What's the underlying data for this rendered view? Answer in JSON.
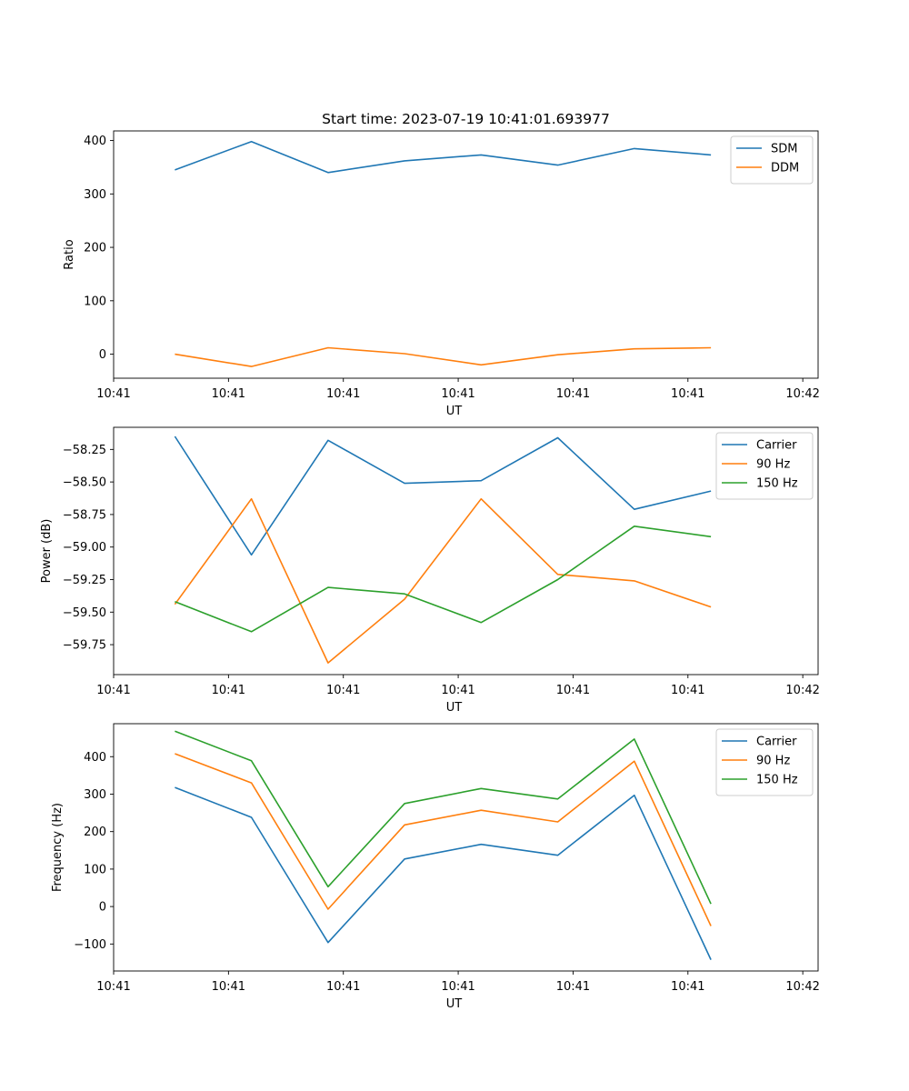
{
  "figure_title": "Start time: 2023-07-19 10:41:01.693977",
  "chart_data": [
    {
      "type": "line",
      "title": "Start time: 2023-07-19 10:41:01.693977",
      "xlabel": "UT",
      "ylabel": "Ratio",
      "x": [
        1,
        2,
        3,
        4,
        5,
        6,
        7,
        8
      ],
      "xlim": [
        0.2,
        9.4
      ],
      "xticks": [
        0.2,
        1.7,
        3.2,
        4.7,
        6.2,
        7.7,
        9.2
      ],
      "xtick_labels": [
        "10:41",
        "10:41",
        "10:41",
        "10:41",
        "10:41",
        "10:41",
        "10:42"
      ],
      "ylim": [
        -45,
        418
      ],
      "yticks": [
        0,
        100,
        200,
        300,
        400
      ],
      "ytick_labels": [
        "0",
        "100",
        "200",
        "300",
        "400"
      ],
      "legend_position": "top-right",
      "series": [
        {
          "name": "SDM",
          "color": "#1f77b4",
          "values": [
            345,
            398,
            340,
            362,
            373,
            354,
            385,
            373
          ]
        },
        {
          "name": "DDM",
          "color": "#ff7f0e",
          "values": [
            0,
            -23,
            12,
            1,
            -20,
            -1,
            10,
            12
          ]
        }
      ]
    },
    {
      "type": "line",
      "title": "",
      "xlabel": "UT",
      "ylabel": "Power (dB)",
      "x": [
        1,
        2,
        3,
        4,
        5,
        6,
        7,
        8
      ],
      "xlim": [
        0.2,
        9.4
      ],
      "xticks": [
        0.2,
        1.7,
        3.2,
        4.7,
        6.2,
        7.7,
        9.2
      ],
      "xtick_labels": [
        "10:41",
        "10:41",
        "10:41",
        "10:41",
        "10:41",
        "10:41",
        "10:42"
      ],
      "ylim": [
        -59.98,
        -58.08
      ],
      "yticks": [
        -58.25,
        -58.5,
        -58.75,
        -59.0,
        -59.25,
        -59.5,
        -59.75
      ],
      "ytick_labels": [
        "−58.25",
        "−58.50",
        "−58.75",
        "−59.00",
        "−59.25",
        "−59.50",
        "−59.75"
      ],
      "legend_position": "top-right",
      "series": [
        {
          "name": "Carrier",
          "color": "#1f77b4",
          "values": [
            -58.15,
            -59.06,
            -58.18,
            -58.51,
            -58.49,
            -58.16,
            -58.71,
            -58.57
          ]
        },
        {
          "name": "90 Hz",
          "color": "#ff7f0e",
          "values": [
            -59.44,
            -58.63,
            -59.89,
            -59.4,
            -58.63,
            -59.21,
            -59.26,
            -59.46
          ]
        },
        {
          "name": "150 Hz",
          "color": "#2ca02c",
          "values": [
            -59.42,
            -59.65,
            -59.31,
            -59.36,
            -59.58,
            -59.25,
            -58.84,
            -58.92
          ]
        }
      ]
    },
    {
      "type": "line",
      "title": "",
      "xlabel": "UT",
      "ylabel": "Frequency (Hz)",
      "x": [
        1,
        2,
        3,
        4,
        5,
        6,
        7,
        8
      ],
      "xlim": [
        0.2,
        9.4
      ],
      "xticks": [
        0.2,
        1.7,
        3.2,
        4.7,
        6.2,
        7.7,
        9.2
      ],
      "xtick_labels": [
        "10:41",
        "10:41",
        "10:41",
        "10:41",
        "10:41",
        "10:41",
        "10:42"
      ],
      "ylim": [
        -172,
        488
      ],
      "yticks": [
        -100,
        0,
        100,
        200,
        300,
        400
      ],
      "ytick_labels": [
        "−100",
        "0",
        "100",
        "200",
        "300",
        "400"
      ],
      "legend_position": "top-right",
      "series": [
        {
          "name": "Carrier",
          "color": "#1f77b4",
          "values": [
            318,
            238,
            -96,
            127,
            166,
            137,
            297,
            -142
          ]
        },
        {
          "name": "90 Hz",
          "color": "#ff7f0e",
          "values": [
            408,
            330,
            -7,
            218,
            257,
            226,
            388,
            -52
          ]
        },
        {
          "name": "150 Hz",
          "color": "#2ca02c",
          "values": [
            468,
            389,
            53,
            275,
            315,
            287,
            447,
            7
          ]
        }
      ]
    }
  ]
}
